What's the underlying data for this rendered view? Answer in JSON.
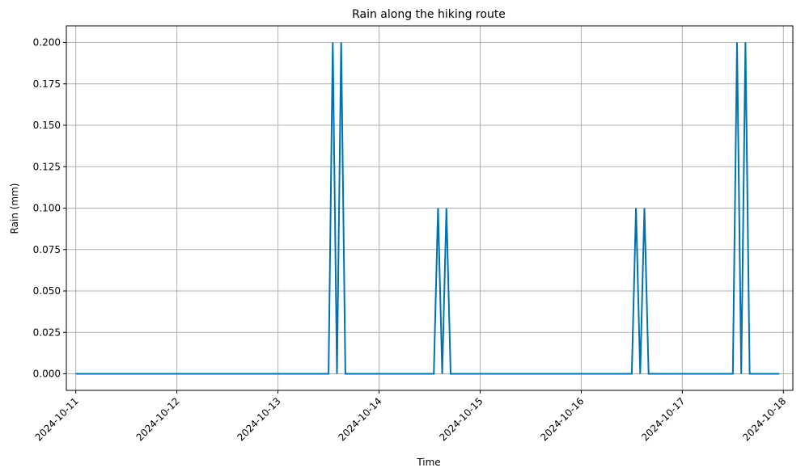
{
  "chart_data": {
    "type": "line",
    "title": "Rain along the hiking route",
    "xlabel": "Time",
    "ylabel": "Rain (mm)",
    "grid": true,
    "legend": "none",
    "xlim": [
      "2024-10-10 21:45",
      "2024-10-18 02:15"
    ],
    "ylim": [
      -0.01,
      0.21
    ],
    "xticks": [
      "2024-10-11",
      "2024-10-12",
      "2024-10-13",
      "2024-10-14",
      "2024-10-15",
      "2024-10-16",
      "2024-10-17",
      "2024-10-18"
    ],
    "yticks": [
      "0.000",
      "0.025",
      "0.050",
      "0.075",
      "0.100",
      "0.125",
      "0.150",
      "0.175",
      "0.200"
    ],
    "line_color": "#0072b2",
    "series": [
      {
        "points": [
          [
            "2024-10-11 00:00",
            0.0
          ],
          [
            "2024-10-13 12:00",
            0.0
          ],
          [
            "2024-10-13 13:00",
            0.2
          ],
          [
            "2024-10-13 14:00",
            0.0
          ],
          [
            "2024-10-13 15:00",
            0.2
          ],
          [
            "2024-10-13 16:00",
            0.0
          ],
          [
            "2024-10-14 13:00",
            0.0
          ],
          [
            "2024-10-14 14:00",
            0.1
          ],
          [
            "2024-10-14 15:00",
            0.0
          ],
          [
            "2024-10-14 16:00",
            0.1
          ],
          [
            "2024-10-14 17:00",
            0.0
          ],
          [
            "2024-10-16 12:00",
            0.0
          ],
          [
            "2024-10-16 13:00",
            0.1
          ],
          [
            "2024-10-16 14:00",
            0.0
          ],
          [
            "2024-10-16 15:00",
            0.1
          ],
          [
            "2024-10-16 16:00",
            0.0
          ],
          [
            "2024-10-17 12:00",
            0.0
          ],
          [
            "2024-10-17 13:00",
            0.2
          ],
          [
            "2024-10-17 14:00",
            0.0
          ],
          [
            "2024-10-17 15:00",
            0.2
          ],
          [
            "2024-10-17 16:00",
            0.0
          ],
          [
            "2024-10-17 23:00",
            0.0
          ]
        ]
      }
    ]
  }
}
